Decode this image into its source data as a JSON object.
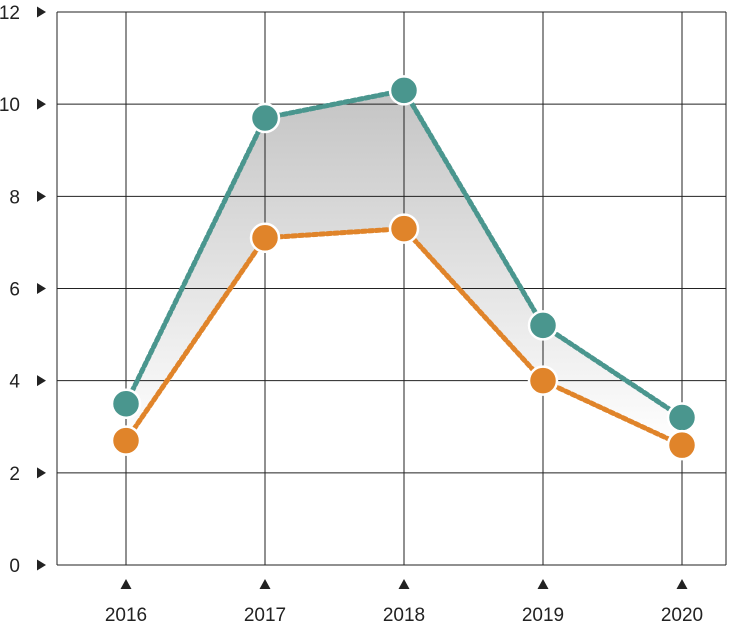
{
  "chart_data": {
    "type": "line",
    "title": "",
    "xlabel": "",
    "ylabel": "",
    "categories": [
      "2016",
      "2017",
      "2018",
      "2019",
      "2020"
    ],
    "ylim": [
      0,
      12
    ],
    "y_ticks": [
      "0",
      "2",
      "4",
      "6",
      "8",
      "10",
      "12"
    ],
    "grid": true,
    "legend": "none",
    "series": [
      {
        "values": [
          3.5,
          9.7,
          10.3,
          5.2,
          3.2
        ],
        "color": "#4a968e",
        "line_style": "dotted"
      },
      {
        "values": [
          2.7,
          7.1,
          7.3,
          4.0,
          2.6
        ],
        "color": "#e0842a",
        "line_style": "dotted"
      }
    ],
    "fill_between_series": {
      "from_color": "#c4c4c4",
      "to_color": "#ffffff"
    },
    "tick_marker_icons": {
      "y_axis": "right-triangle-icon",
      "x_axis": "up-triangle-icon"
    }
  }
}
